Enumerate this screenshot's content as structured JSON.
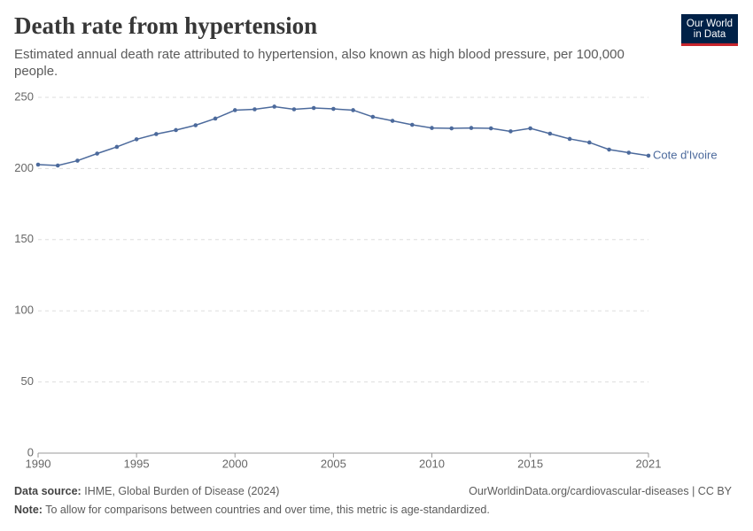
{
  "chart_data": {
    "type": "line",
    "title": "Death rate from hypertension",
    "subtitle": "Estimated annual death rate attributed to hypertension, also known as high blood pressure, per 100,000 people.",
    "x": [
      1990,
      1991,
      1992,
      1993,
      1994,
      1995,
      1996,
      1997,
      1998,
      1999,
      2000,
      2001,
      2002,
      2003,
      2004,
      2005,
      2006,
      2007,
      2008,
      2009,
      2010,
      2011,
      2012,
      2013,
      2014,
      2015,
      2016,
      2017,
      2018,
      2019,
      2020,
      2021
    ],
    "series": [
      {
        "name": "Cote d'Ivoire",
        "color": "#4c6a9c",
        "values": [
          202.7,
          202.1,
          205.5,
          210.5,
          215.2,
          220.5,
          224.2,
          227,
          230.4,
          235.1,
          241,
          241.6,
          243.5,
          241.6,
          242.5,
          241.9,
          241,
          236.3,
          233.5,
          230.7,
          228.5,
          228.2,
          228.5,
          228.2,
          226.1,
          228.2,
          224.5,
          220.8,
          218.3,
          213.3,
          211.1,
          209
        ]
      }
    ],
    "xlim": [
      1990,
      2021
    ],
    "xticks": [
      1990,
      1995,
      2000,
      2005,
      2010,
      2015,
      2021
    ],
    "ylim": [
      0,
      250
    ],
    "yticks": [
      0,
      50,
      100,
      150,
      200,
      250
    ],
    "grid": true
  },
  "logo": {
    "line1": "Our World",
    "line2": "in Data"
  },
  "footer": {
    "source_label": "Data source:",
    "source": "IHME, Global Burden of Disease (2024)",
    "url": "OurWorldinData.org/cardiovascular-diseases | CC BY",
    "note_label": "Note:",
    "note": "To allow for comparisons between countries and over time, this metric is age-standardized."
  }
}
